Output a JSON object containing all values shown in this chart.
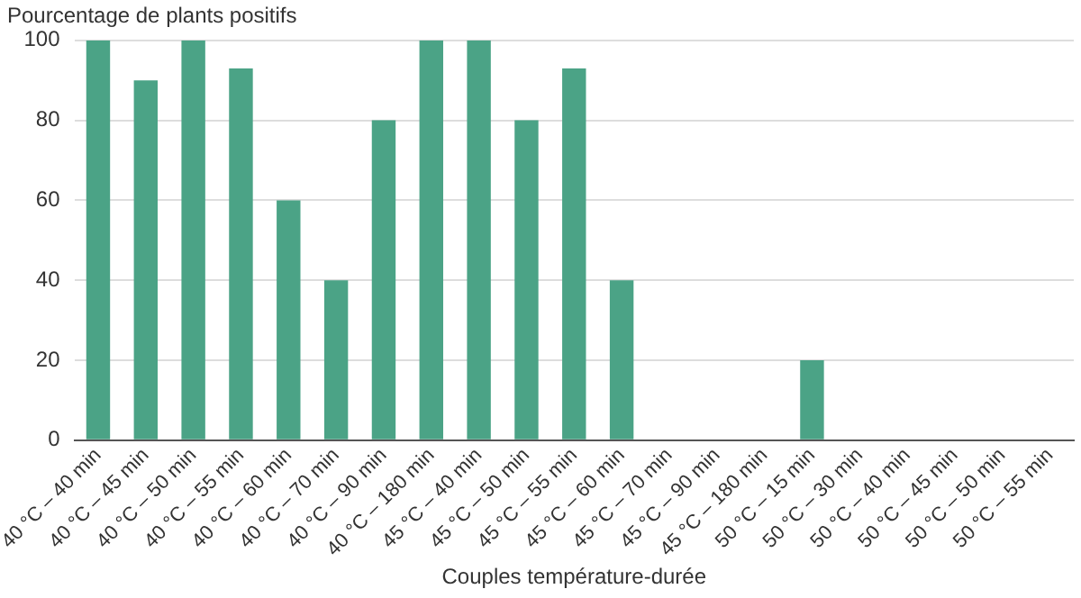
{
  "chart_data": {
    "type": "bar",
    "ylabel": "Pourcentage de plants positifs",
    "xlabel": "Couples température-durée",
    "categories": [
      "40 °C – 40 min",
      "40 °C – 45 min",
      "40 °C – 50 min",
      "40 °C – 55 min",
      "40 °C – 60 min",
      "40 °C – 70 min",
      "40 °C – 90 min",
      "40 °C – 180 min",
      "45 °C – 40 min",
      "45 °C – 50 min",
      "45 °C – 55 min",
      "45 °C – 60 min",
      "45 °C – 70 min",
      "45 °C – 90 min",
      "45 °C – 180 min",
      "50 °C – 15 min",
      "50 °C – 30 min",
      "50 °C – 40 min",
      "50 °C – 45 min",
      "50 °C – 50 min",
      "50 °C – 55 min"
    ],
    "values": [
      100,
      90,
      100,
      93,
      60,
      40,
      80,
      100,
      100,
      80,
      93,
      40,
      0,
      0,
      0,
      20,
      0,
      0,
      0,
      0,
      0
    ],
    "color": "#4ba386",
    "ylim": [
      0,
      100
    ],
    "yticks": [
      0,
      20,
      40,
      60,
      80,
      100
    ],
    "grid": "y"
  }
}
